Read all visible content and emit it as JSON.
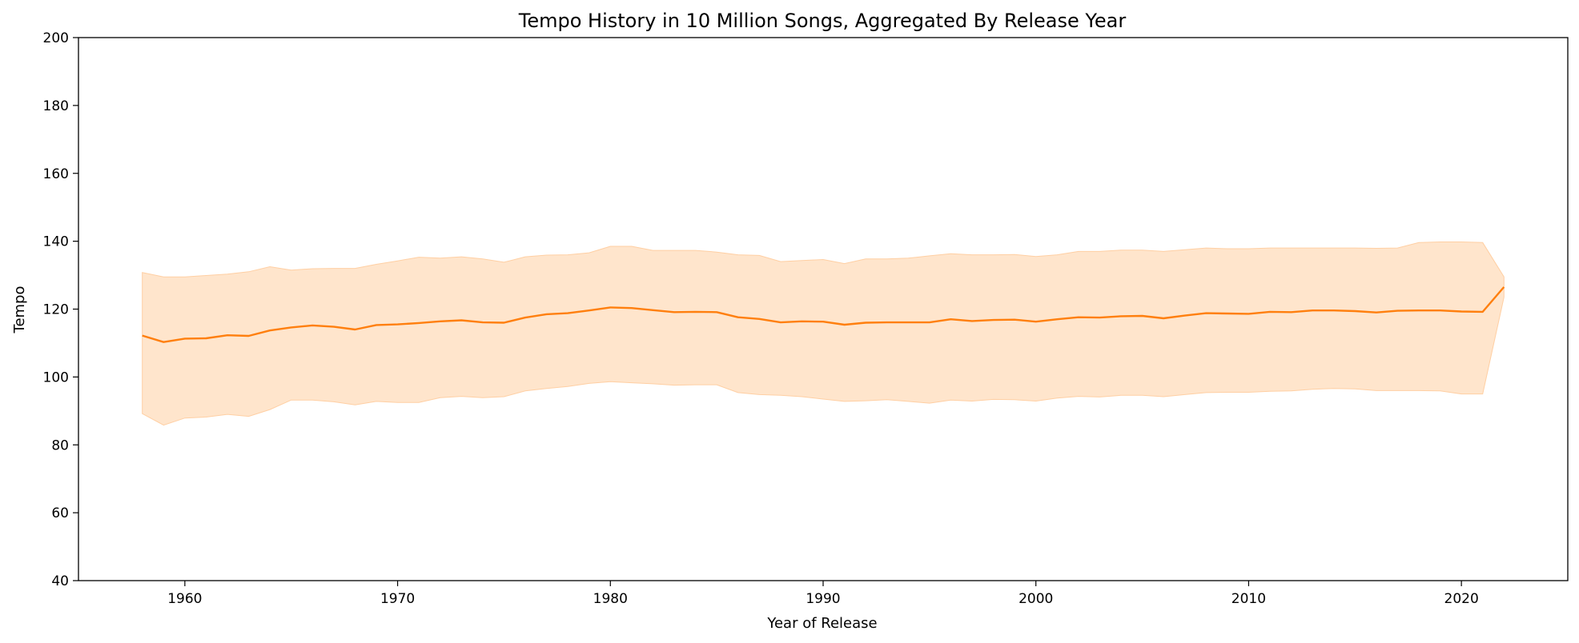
{
  "chart_data": {
    "type": "line",
    "title": "Tempo History in 10 Million Songs, Aggregated By Release Year",
    "xlabel": "Year of Release",
    "ylabel": "Tempo",
    "xlim": [
      1955,
      2025
    ],
    "ylim": [
      40,
      200
    ],
    "xticks": [
      1960,
      1970,
      1980,
      1990,
      2000,
      2010,
      2020
    ],
    "yticks": [
      40,
      60,
      80,
      100,
      120,
      140,
      160,
      180,
      200
    ],
    "grid": false,
    "line_color": "#ff7f0e",
    "band_color": "#ffcfa3",
    "x": [
      1958,
      1959,
      1960,
      1961,
      1962,
      1963,
      1964,
      1965,
      1966,
      1967,
      1968,
      1969,
      1970,
      1971,
      1972,
      1973,
      1974,
      1975,
      1976,
      1977,
      1978,
      1979,
      1980,
      1981,
      1982,
      1983,
      1984,
      1985,
      1986,
      1987,
      1988,
      1989,
      1990,
      1991,
      1992,
      1993,
      1994,
      1995,
      1996,
      1997,
      1998,
      1999,
      2000,
      2001,
      2002,
      2003,
      2004,
      2005,
      2006,
      2007,
      2008,
      2009,
      2010,
      2011,
      2012,
      2013,
      2014,
      2015,
      2016,
      2017,
      2018,
      2019,
      2020,
      2021,
      2022
    ],
    "series": [
      {
        "values": [
          112.2,
          110.3,
          111.3,
          111.4,
          112.3,
          112.1,
          113.7,
          114.6,
          115.2,
          114.8,
          114.0,
          115.3,
          115.5,
          115.9,
          116.4,
          116.7,
          116.1,
          116.0,
          117.5,
          118.5,
          118.8,
          119.6,
          120.5,
          120.3,
          119.7,
          119.1,
          119.2,
          119.1,
          117.6,
          117.1,
          116.1,
          116.4,
          116.3,
          115.4,
          116.0,
          116.1,
          116.1,
          116.1,
          117.0,
          116.5,
          116.8,
          116.9,
          116.3,
          117.0,
          117.6,
          117.5,
          117.9,
          118.0,
          117.3,
          118.1,
          118.8,
          118.7,
          118.6,
          119.2,
          119.1,
          119.6,
          119.6,
          119.4,
          119.0,
          119.5,
          119.6,
          119.6,
          119.3,
          119.2,
          126.5
        ],
        "lower": [
          89.2,
          85.8,
          87.9,
          88.2,
          89.0,
          88.4,
          90.4,
          93.2,
          93.2,
          92.7,
          91.8,
          92.8,
          92.5,
          92.5,
          93.9,
          94.3,
          93.9,
          94.2,
          95.9,
          96.6,
          97.2,
          98.1,
          98.6,
          98.3,
          98.0,
          97.6,
          97.7,
          97.7,
          95.4,
          94.8,
          94.6,
          94.2,
          93.5,
          92.8,
          93.0,
          93.3,
          92.8,
          92.3,
          93.2,
          92.9,
          93.4,
          93.3,
          92.9,
          93.8,
          94.3,
          94.1,
          94.6,
          94.6,
          94.2,
          94.8,
          95.4,
          95.5,
          95.5,
          95.8,
          95.9,
          96.4,
          96.6,
          96.5,
          96.0,
          96.0,
          96.0,
          95.9,
          95.0,
          95.0,
          123.5
        ],
        "upper": [
          130.8,
          129.5,
          129.5,
          129.9,
          130.3,
          131.0,
          132.5,
          131.5,
          131.9,
          132.0,
          132.0,
          133.2,
          134.2,
          135.3,
          135.0,
          135.4,
          134.8,
          133.8,
          135.4,
          135.9,
          136.0,
          136.6,
          138.5,
          138.5,
          137.3,
          137.3,
          137.3,
          136.8,
          136.0,
          135.8,
          134.0,
          134.3,
          134.6,
          133.4,
          134.8,
          134.8,
          135.0,
          135.7,
          136.3,
          136.0,
          136.0,
          136.1,
          135.5,
          136.0,
          137.0,
          137.0,
          137.4,
          137.4,
          137.0,
          137.5,
          138.0,
          137.8,
          137.8,
          138.0,
          138.0,
          138.0,
          138.0,
          138.0,
          137.9,
          138.0,
          139.6,
          139.8,
          139.8,
          139.6,
          129.5
        ]
      }
    ]
  }
}
